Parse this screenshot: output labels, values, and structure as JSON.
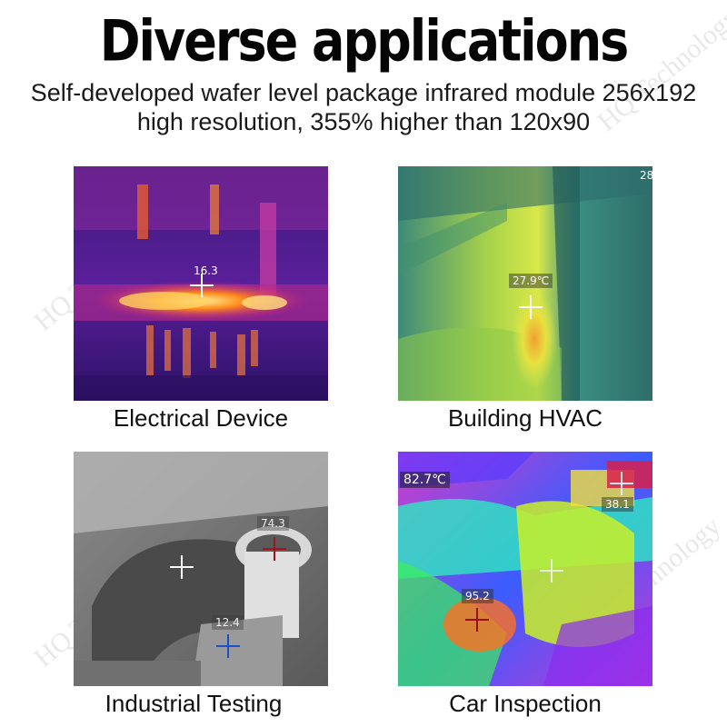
{
  "header": {
    "title": "Diverse applications",
    "subtitle_line1": "Self-developed wafer level package infrared module 256x192",
    "subtitle_line2": "high resolution, 355% higher than 120x90"
  },
  "watermark": "HQ Technology",
  "panels": [
    {
      "caption": "Electrical Device",
      "readouts": [
        "16.3"
      ]
    },
    {
      "caption": "Building HVAC",
      "readouts": [
        "27.9℃",
        "28"
      ]
    },
    {
      "caption": "Industrial Testing",
      "readouts": [
        "74.3",
        "12.4"
      ]
    },
    {
      "caption": "Car Inspection",
      "readouts": [
        "82.7℃",
        "38.1",
        "95.2"
      ]
    }
  ]
}
